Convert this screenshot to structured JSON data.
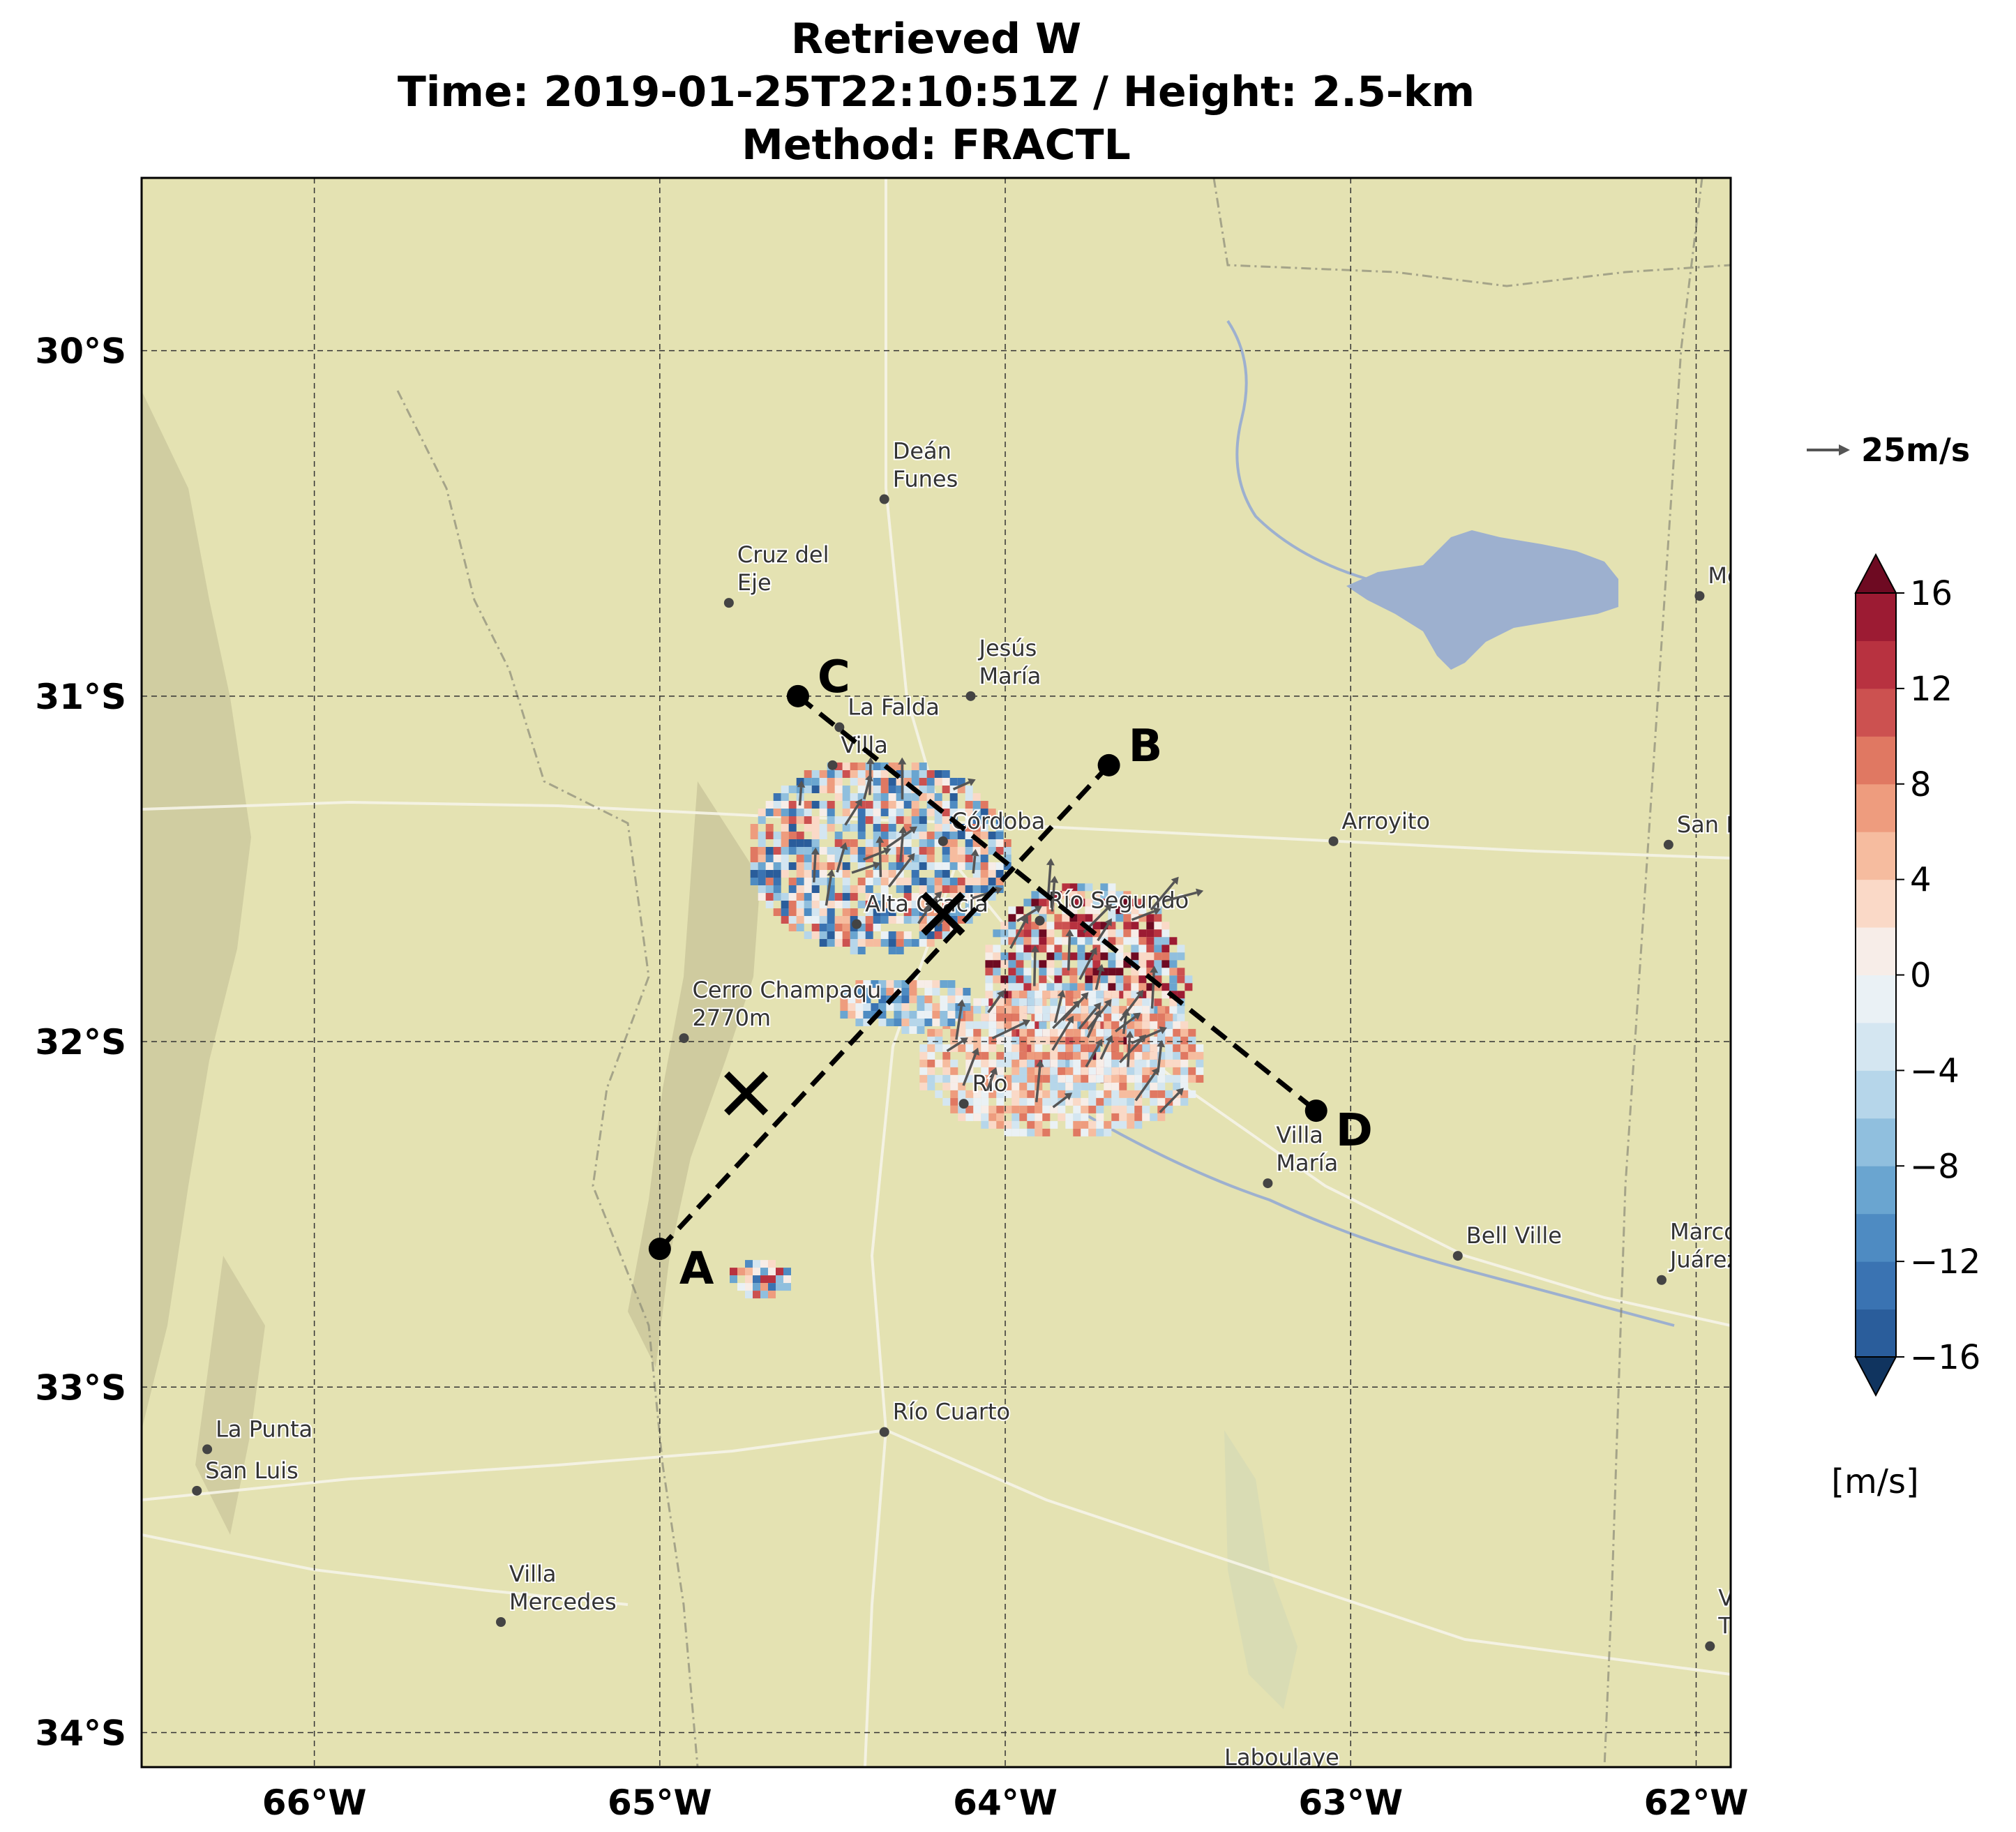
{
  "title": {
    "line1": "Retrieved W",
    "line2": "Time: 2019-01-25T22:10:51Z / Height: 2.5-km",
    "line3": "Method: FRACTL"
  },
  "map": {
    "lon_range": [
      -66.5,
      -61.9
    ],
    "lat_range": [
      -34.1,
      -29.5
    ],
    "lon_ticks": [
      {
        "value": -66,
        "label": "66°W"
      },
      {
        "value": -65,
        "label": "65°W"
      },
      {
        "value": -64,
        "label": "64°W"
      },
      {
        "value": -63,
        "label": "63°W"
      },
      {
        "value": -62,
        "label": "62°W"
      }
    ],
    "lat_ticks": [
      {
        "value": -30,
        "label": "30°S"
      },
      {
        "value": -31,
        "label": "31°S"
      },
      {
        "value": -32,
        "label": "32°S"
      },
      {
        "value": -33,
        "label": "33°S"
      },
      {
        "value": -34,
        "label": "34°S"
      }
    ],
    "gridlines": true,
    "basemap_colors": {
      "land": "#e4e2b2",
      "water": "#9db0cf",
      "terrain": "#c8c49a"
    },
    "places": [
      {
        "name": "Deán Funes",
        "lines": [
          "Deán",
          "Funes"
        ],
        "lon": -64.35,
        "lat": -30.43
      },
      {
        "name": "Cruz del Eje",
        "lines": [
          "Cruz del",
          "Eje"
        ],
        "lon": -64.8,
        "lat": -30.73
      },
      {
        "name": "Jesús María",
        "lines": [
          "Jesús",
          "María"
        ],
        "lon": -64.1,
        "lat": -31.0
      },
      {
        "name": "La Falda",
        "lines": [
          "La Falda"
        ],
        "lon": -64.48,
        "lat": -31.09
      },
      {
        "name": "Villa",
        "lines": [
          "Villa"
        ],
        "lon": -64.5,
        "lat": -31.2
      },
      {
        "name": "Córdoba",
        "lines": [
          "Córdoba"
        ],
        "lon": -64.18,
        "lat": -31.42
      },
      {
        "name": "Alta Gracia",
        "lines": [
          "Alta Gracia"
        ],
        "lon": -64.43,
        "lat": -31.66
      },
      {
        "name": "Río Segundo",
        "lines": [
          "Río Segundo"
        ],
        "lon": -63.9,
        "lat": -31.65
      },
      {
        "name": "Arroyito",
        "lines": [
          "Arroyito"
        ],
        "lon": -63.05,
        "lat": -31.42
      },
      {
        "name": "San Francisco",
        "lines": [
          "San Francisco"
        ],
        "lon": -62.08,
        "lat": -31.43
      },
      {
        "name": "Morteros",
        "lines": [
          "Morteros"
        ],
        "lon": -61.99,
        "lat": -30.71
      },
      {
        "name": "Cerro Champaqui 2770m",
        "lines": [
          "Cerro Champaqu",
          "2770m"
        ],
        "lon": -64.93,
        "lat": -31.99
      },
      {
        "name": "Río",
        "lines": [
          "Río"
        ],
        "lon": -64.12,
        "lat": -32.18
      },
      {
        "name": "Villa María",
        "lines": [
          "Villa",
          "María"
        ],
        "lon": -63.24,
        "lat": -32.41
      },
      {
        "name": "Bell Ville",
        "lines": [
          "Bell Ville"
        ],
        "lon": -62.69,
        "lat": -32.62
      },
      {
        "name": "Marcos Juárez",
        "lines": [
          "Marcos",
          "Juárez"
        ],
        "lon": -62.1,
        "lat": -32.69
      },
      {
        "name": "Río Cuarto",
        "lines": [
          "Río Cuarto"
        ],
        "lon": -64.35,
        "lat": -33.13
      },
      {
        "name": "La Punta",
        "lines": [
          "La Punta"
        ],
        "lon": -66.31,
        "lat": -33.18
      },
      {
        "name": "San Luis",
        "lines": [
          "San Luis"
        ],
        "lon": -66.34,
        "lat": -33.3
      },
      {
        "name": "Villa Mercedes",
        "lines": [
          "Villa",
          "Mercedes"
        ],
        "lon": -65.46,
        "lat": -33.68
      },
      {
        "name": "Venado Tuerto",
        "lines": [
          "Venado",
          "Tuerto"
        ],
        "lon": -61.96,
        "lat": -33.75
      },
      {
        "name": "Laboulaye",
        "lines": [
          "Laboulaye"
        ],
        "lon": -63.39,
        "lat": -34.13
      }
    ],
    "cross_sections": [
      {
        "start": {
          "label": "A",
          "lon": -65.0,
          "lat": -32.6
        },
        "end": {
          "label": "B",
          "lon": -63.7,
          "lat": -31.2
        }
      },
      {
        "start": {
          "label": "C",
          "lon": -64.6,
          "lat": -31.0
        },
        "end": {
          "label": "D",
          "lon": -63.1,
          "lat": -32.2
        }
      }
    ],
    "markers": [
      {
        "symbol": "×",
        "lon": -64.75,
        "lat": -32.15
      },
      {
        "symbol": "×",
        "lon": -64.18,
        "lat": -31.63
      }
    ]
  },
  "vector_key": {
    "label": "25m/s",
    "value": 25,
    "unit": "m/s"
  },
  "colorbar": {
    "label": "[m/s]",
    "levels": [
      -16,
      -14,
      -12,
      -10,
      -8,
      -6,
      -4,
      -2,
      0,
      2,
      4,
      6,
      8,
      10,
      12,
      14,
      16
    ],
    "ticks": [
      {
        "value": 16,
        "label": "16"
      },
      {
        "value": 12,
        "label": "12"
      },
      {
        "value": 8,
        "label": "8"
      },
      {
        "value": 4,
        "label": "4"
      },
      {
        "value": 0,
        "label": "0"
      },
      {
        "value": -4,
        "label": "−4"
      },
      {
        "value": -8,
        "label": "−8"
      },
      {
        "value": -12,
        "label": "−12"
      },
      {
        "value": -16,
        "label": "−16"
      }
    ],
    "colors": [
      "#2a5d9b",
      "#3a73b2",
      "#4e8bc2",
      "#6aa5d0",
      "#90bfde",
      "#b6d6ea",
      "#d4e6f1",
      "#eaf1f5",
      "#f7ede8",
      "#fad9c7",
      "#f6bc9f",
      "#ee9c7e",
      "#e07862",
      "#cc5150",
      "#b83240",
      "#9c1b33"
    ],
    "extend_colors": {
      "below": "#10345f",
      "above": "#6e0a22"
    }
  }
}
